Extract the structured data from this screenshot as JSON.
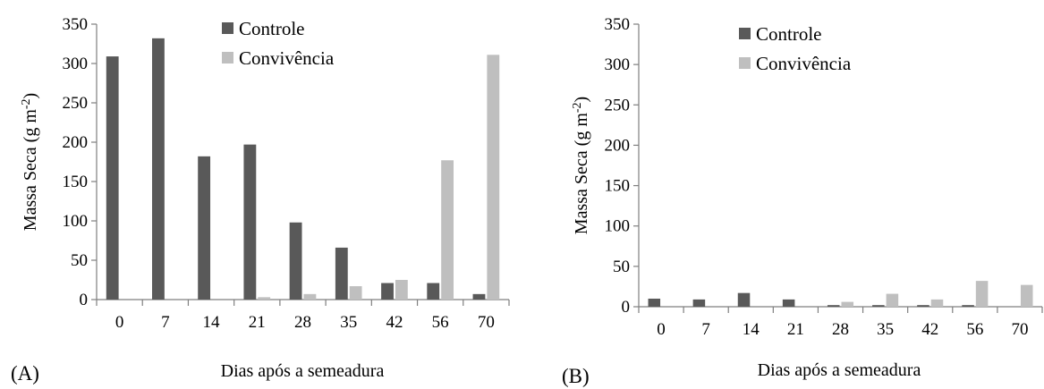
{
  "colors": {
    "controle": "#595959",
    "convivencia": "#bfbfbf",
    "axis": "#7f7f7f"
  },
  "chart_data": [
    {
      "type": "bar",
      "panel_label": "(A)",
      "xlabel": "Dias após a semeadura",
      "ylabel": "Massa Seca (g m-2)",
      "ylabel_main": "Massa Seca (g m",
      "ylabel_sup": "-2",
      "ylabel_end": ")",
      "categories": [
        "0",
        "7",
        "14",
        "21",
        "28",
        "35",
        "42",
        "56",
        "70"
      ],
      "ylim": [
        0,
        350
      ],
      "yticks": [
        "0",
        "50",
        "100",
        "150",
        "200",
        "250",
        "300",
        "350"
      ],
      "legend_position": "top-right",
      "series": [
        {
          "name": "Controle",
          "values": [
            309,
            332,
            182,
            197,
            98,
            66,
            21,
            21,
            7
          ]
        },
        {
          "name": "Convivência",
          "values": [
            0,
            0,
            0,
            3,
            7,
            17,
            25,
            177,
            311
          ]
        }
      ]
    },
    {
      "type": "bar",
      "panel_label": "(B)",
      "xlabel": "Dias após a semeadura",
      "ylabel": "Massa Seca (g m-2)",
      "ylabel_main": "Massa Seca (g m",
      "ylabel_sup": "-2",
      "ylabel_end": ")",
      "categories": [
        "0",
        "7",
        "14",
        "21",
        "28",
        "35",
        "42",
        "56",
        "70"
      ],
      "ylim": [
        0,
        350
      ],
      "yticks": [
        "0",
        "50",
        "100",
        "150",
        "200",
        "250",
        "300",
        "350"
      ],
      "legend_position": "top-left",
      "series": [
        {
          "name": "Controle",
          "values": [
            10,
            9,
            17,
            9,
            2,
            2,
            2,
            2,
            0
          ]
        },
        {
          "name": "Convivência",
          "values": [
            0,
            0,
            0,
            0,
            6,
            16,
            9,
            32,
            27
          ]
        }
      ]
    }
  ]
}
